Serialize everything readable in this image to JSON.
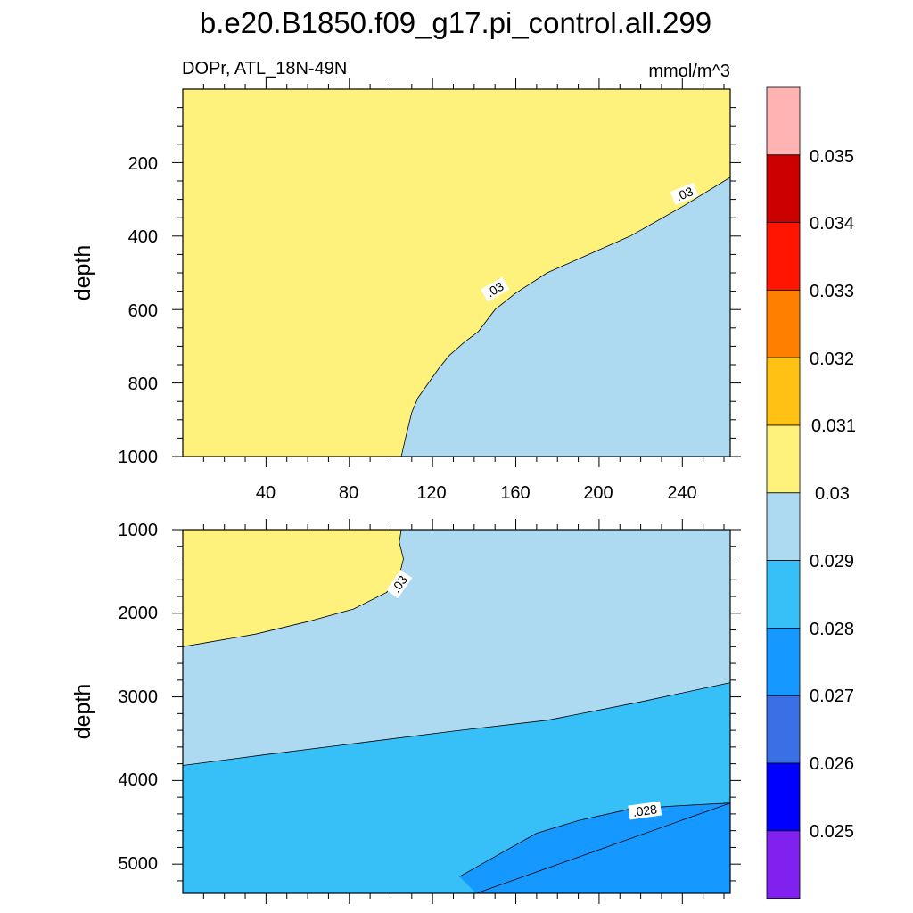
{
  "title": "b.e20.B1850.f09_g17.pi_control.all.299",
  "subtitle_left": "DOPr, ATL_18N-49N",
  "subtitle_right": "mmol/m^3",
  "colors": {
    "c_0_025": "#8021F0",
    "c_0_026": "#0000FF",
    "c_0_027": "#3A6FE6",
    "c_0_028": "#1598FF",
    "c_0_029": "#36C0F7",
    "c_0_030": "#ADDAF0",
    "c_0_031": "#FFF27C",
    "c_0_032": "#FFC114",
    "c_0_033": "#FF7F00",
    "c_0_034": "#FF1500",
    "c_0_035": "#CC0000",
    "c_over": "#FFB3B3"
  },
  "chart_data": [
    {
      "type": "heatmap",
      "subtype": "filled-contour",
      "panel": "upper",
      "xlabel": "",
      "ylabel": "depth",
      "xlim": [
        0,
        263
      ],
      "ylim": [
        1000,
        0
      ],
      "y_reversed": true,
      "x_ticks": [
        "40",
        "80",
        "120",
        "160",
        "200",
        "240"
      ],
      "y_ticks": [
        "200",
        "400",
        "600",
        "800",
        "1000"
      ],
      "regions": [
        {
          "range": "0.03-0.031",
          "description": "shallow and western part"
        },
        {
          "range": "0.029-0.03",
          "description": "deep eastern part"
        }
      ],
      "contours": [
        {
          "level": ".03",
          "points": [
            [
              105,
              1000
            ],
            [
              107,
              950
            ],
            [
              110,
              880
            ],
            [
              113,
              840
            ],
            [
              118,
              800
            ],
            [
              123,
              760
            ],
            [
              128,
              725
            ],
            [
              135,
              690
            ],
            [
              142,
              660
            ],
            [
              150,
              600
            ],
            [
              160,
              555
            ],
            [
              175,
              500
            ],
            [
              195,
              450
            ],
            [
              215,
              400
            ],
            [
              240,
              320
            ],
            [
              263,
              240
            ]
          ],
          "label_at": [
            [
              150,
              545
            ],
            [
              241,
              285
            ]
          ]
        }
      ]
    },
    {
      "type": "heatmap",
      "subtype": "filled-contour",
      "panel": "lower",
      "xlabel": "",
      "ylabel": "depth",
      "xlim": [
        0,
        263
      ],
      "ylim": [
        5350,
        1000
      ],
      "y_reversed": true,
      "y_ticks": [
        "1000",
        "2000",
        "3000",
        "4000",
        "5000"
      ],
      "regions": [
        {
          "range": "0.03-0.031",
          "description": "upper-left wedge"
        },
        {
          "range": "0.029-0.03",
          "description": "middle band"
        },
        {
          "range": "0.028-0.029",
          "description": "deep band"
        },
        {
          "range": "0.027-0.028",
          "description": "bottom-right patch"
        }
      ],
      "contours": [
        {
          "level": ".03",
          "points": [
            [
              105,
              1000
            ],
            [
              104,
              1150
            ],
            [
              106,
              1350
            ],
            [
              104,
              1550
            ],
            [
              98,
              1750
            ],
            [
              82,
              1950
            ],
            [
              60,
              2100
            ],
            [
              35,
              2250
            ],
            [
              0,
              2400
            ]
          ],
          "label_at": [
            [
              104,
              1650
            ]
          ]
        },
        {
          "level": ".029",
          "points": [
            [
              0,
              3820
            ],
            [
              40,
              3690
            ],
            [
              85,
              3550
            ],
            [
              130,
              3410
            ],
            [
              175,
              3280
            ],
            [
              220,
              3060
            ],
            [
              263,
              2830
            ]
          ]
        },
        {
          "level": ".028",
          "points": [
            [
              133,
              5150
            ],
            [
              150,
              4910
            ],
            [
              170,
              4630
            ],
            [
              190,
              4480
            ],
            [
              215,
              4340
            ],
            [
              240,
              4300
            ],
            [
              263,
              4270
            ]
          ],
          "label_at": [
            [
              222,
              4360
            ]
          ]
        }
      ]
    }
  ],
  "colorbar": {
    "labels": [
      "0.025",
      "0.026",
      "0.027",
      "0.028",
      "0.029",
      "0.03",
      "0.031",
      "0.032",
      "0.033",
      "0.034",
      "0.035"
    ]
  }
}
